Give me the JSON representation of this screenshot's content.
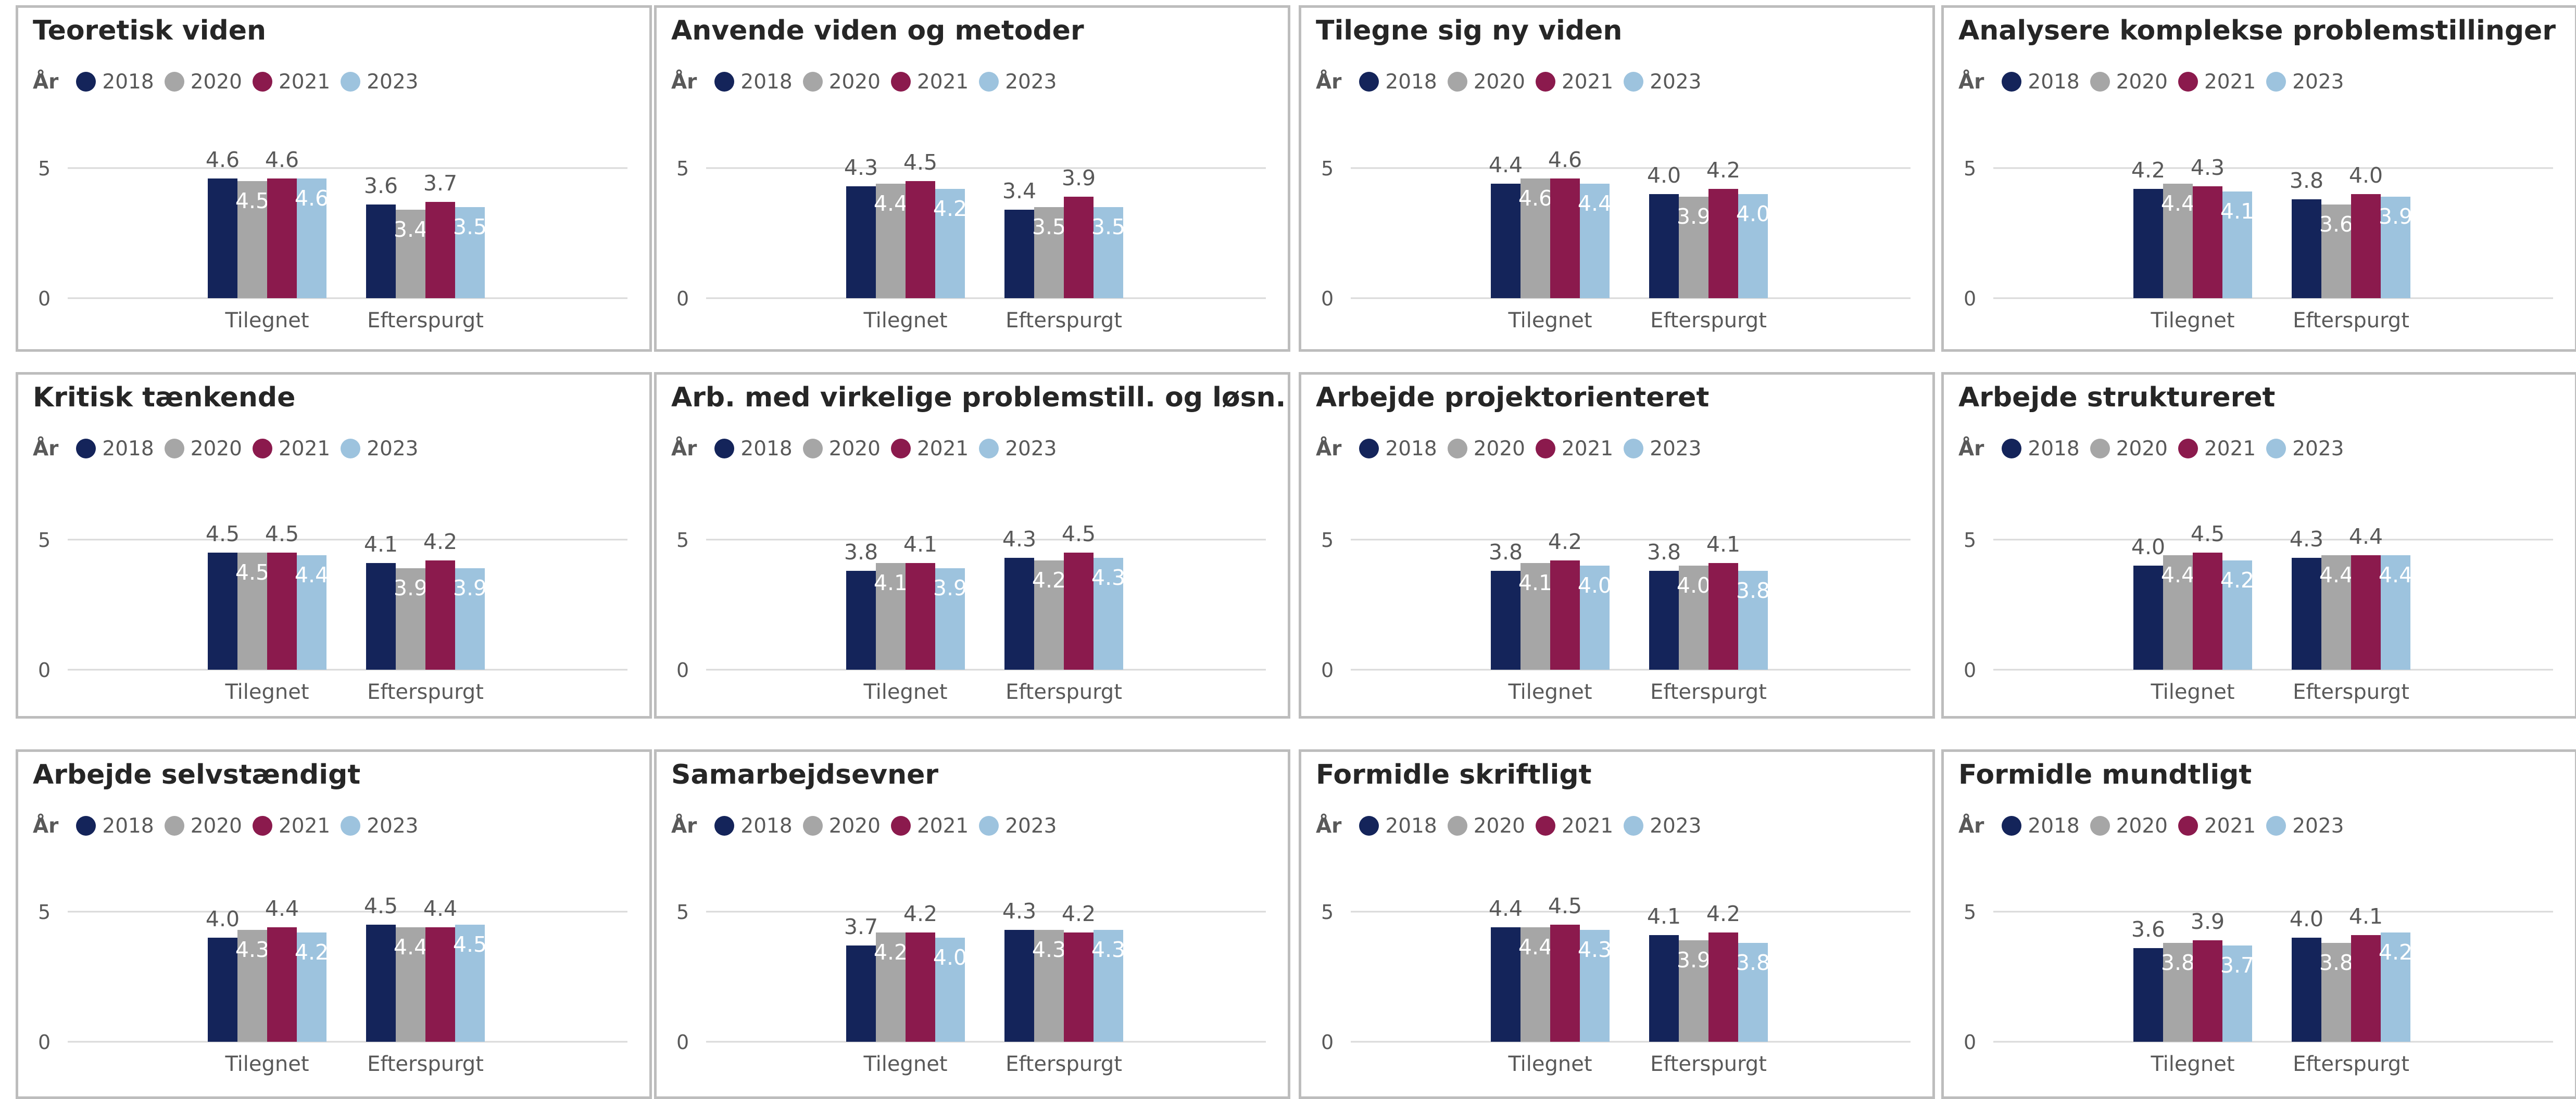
{
  "colors": {
    "2018": "#14245a",
    "2020": "#a6a6a6",
    "2021": "#8b1a4d",
    "2023": "#9dc3de"
  },
  "legend": {
    "title": "År",
    "items": [
      "2018",
      "2020",
      "2021",
      "2023"
    ]
  },
  "chart_data": [
    {
      "type": "bar",
      "title": "Teoretisk viden",
      "categories": [
        "Tilegnet",
        "Efterspurgt"
      ],
      "ylim": [
        0,
        5
      ],
      "yticks": [
        "0",
        "5"
      ],
      "grid": true,
      "legend": "top-left",
      "series": [
        {
          "name": "2018",
          "values": [
            4.6,
            3.6
          ]
        },
        {
          "name": "2020",
          "values": [
            4.5,
            3.4
          ]
        },
        {
          "name": "2021",
          "values": [
            4.6,
            3.7
          ]
        },
        {
          "name": "2023",
          "values": [
            4.6,
            3.5
          ]
        }
      ]
    },
    {
      "type": "bar",
      "title": "Anvende viden og metoder",
      "categories": [
        "Tilegnet",
        "Efterspurgt"
      ],
      "ylim": [
        0,
        5
      ],
      "yticks": [
        "0",
        "5"
      ],
      "grid": true,
      "legend": "top-left",
      "series": [
        {
          "name": "2018",
          "values": [
            4.3,
            3.4
          ]
        },
        {
          "name": "2020",
          "values": [
            4.4,
            3.5
          ]
        },
        {
          "name": "2021",
          "values": [
            4.5,
            3.9
          ]
        },
        {
          "name": "2023",
          "values": [
            4.2,
            3.5
          ]
        }
      ]
    },
    {
      "type": "bar",
      "title": "Tilegne sig ny viden",
      "categories": [
        "Tilegnet",
        "Efterspurgt"
      ],
      "ylim": [
        0,
        5
      ],
      "yticks": [
        "0",
        "5"
      ],
      "grid": true,
      "legend": "top-left",
      "series": [
        {
          "name": "2018",
          "values": [
            4.4,
            4.0
          ]
        },
        {
          "name": "2020",
          "values": [
            4.6,
            3.9
          ]
        },
        {
          "name": "2021",
          "values": [
            4.6,
            4.2
          ]
        },
        {
          "name": "2023",
          "values": [
            4.4,
            4.0
          ]
        }
      ]
    },
    {
      "type": "bar",
      "title": "Analysere komplekse problemstillinger",
      "categories": [
        "Tilegnet",
        "Efterspurgt"
      ],
      "ylim": [
        0,
        5
      ],
      "yticks": [
        "0",
        "5"
      ],
      "grid": true,
      "legend": "top-left",
      "series": [
        {
          "name": "2018",
          "values": [
            4.2,
            3.8
          ]
        },
        {
          "name": "2020",
          "values": [
            4.4,
            3.6
          ]
        },
        {
          "name": "2021",
          "values": [
            4.3,
            4.0
          ]
        },
        {
          "name": "2023",
          "values": [
            4.1,
            3.9
          ]
        }
      ]
    },
    {
      "type": "bar",
      "title": "Kritisk tænkende",
      "categories": [
        "Tilegnet",
        "Efterspurgt"
      ],
      "ylim": [
        0,
        5
      ],
      "yticks": [
        "0",
        "5"
      ],
      "grid": true,
      "legend": "top-left",
      "series": [
        {
          "name": "2018",
          "values": [
            4.5,
            4.1
          ]
        },
        {
          "name": "2020",
          "values": [
            4.5,
            3.9
          ]
        },
        {
          "name": "2021",
          "values": [
            4.5,
            4.2
          ]
        },
        {
          "name": "2023",
          "values": [
            4.4,
            3.9
          ]
        }
      ]
    },
    {
      "type": "bar",
      "title": "Arb. med  virkelige problemstill. og løsn.",
      "categories": [
        "Tilegnet",
        "Efterspurgt"
      ],
      "ylim": [
        0,
        5
      ],
      "yticks": [
        "0",
        "5"
      ],
      "grid": true,
      "legend": "top-left",
      "series": [
        {
          "name": "2018",
          "values": [
            3.8,
            4.3
          ]
        },
        {
          "name": "2020",
          "values": [
            4.1,
            4.2
          ]
        },
        {
          "name": "2021",
          "values": [
            4.1,
            4.5
          ]
        },
        {
          "name": "2023",
          "values": [
            3.9,
            4.3
          ]
        }
      ]
    },
    {
      "type": "bar",
      "title": "Arbejde projektorienteret",
      "categories": [
        "Tilegnet",
        "Efterspurgt"
      ],
      "ylim": [
        0,
        5
      ],
      "yticks": [
        "0",
        "5"
      ],
      "grid": true,
      "legend": "top-left",
      "series": [
        {
          "name": "2018",
          "values": [
            3.8,
            3.8
          ]
        },
        {
          "name": "2020",
          "values": [
            4.1,
            4.0
          ]
        },
        {
          "name": "2021",
          "values": [
            4.2,
            4.1
          ]
        },
        {
          "name": "2023",
          "values": [
            4.0,
            3.8
          ]
        }
      ]
    },
    {
      "type": "bar",
      "title": "Arbejde struktureret",
      "categories": [
        "Tilegnet",
        "Efterspurgt"
      ],
      "ylim": [
        0,
        5
      ],
      "yticks": [
        "0",
        "5"
      ],
      "grid": true,
      "legend": "top-left",
      "series": [
        {
          "name": "2018",
          "values": [
            4.0,
            4.3
          ]
        },
        {
          "name": "2020",
          "values": [
            4.4,
            4.4
          ]
        },
        {
          "name": "2021",
          "values": [
            4.5,
            4.4
          ]
        },
        {
          "name": "2023",
          "values": [
            4.2,
            4.4
          ]
        }
      ]
    },
    {
      "type": "bar",
      "title": "Arbejde selvstændigt",
      "categories": [
        "Tilegnet",
        "Efterspurgt"
      ],
      "ylim": [
        0,
        5
      ],
      "yticks": [
        "0",
        "5"
      ],
      "grid": true,
      "legend": "top-left",
      "series": [
        {
          "name": "2018",
          "values": [
            4.0,
            4.5
          ]
        },
        {
          "name": "2020",
          "values": [
            4.3,
            4.4
          ]
        },
        {
          "name": "2021",
          "values": [
            4.4,
            4.4
          ]
        },
        {
          "name": "2023",
          "values": [
            4.2,
            4.5
          ]
        }
      ]
    },
    {
      "type": "bar",
      "title": "Samarbejdsevner",
      "categories": [
        "Tilegnet",
        "Efterspurgt"
      ],
      "ylim": [
        0,
        5
      ],
      "yticks": [
        "0",
        "5"
      ],
      "grid": true,
      "legend": "top-left",
      "series": [
        {
          "name": "2018",
          "values": [
            3.7,
            4.3
          ]
        },
        {
          "name": "2020",
          "values": [
            4.2,
            4.3
          ]
        },
        {
          "name": "2021",
          "values": [
            4.2,
            4.2
          ]
        },
        {
          "name": "2023",
          "values": [
            4.0,
            4.3
          ]
        }
      ]
    },
    {
      "type": "bar",
      "title": "Formidle skriftligt",
      "categories": [
        "Tilegnet",
        "Efterspurgt"
      ],
      "ylim": [
        0,
        5
      ],
      "yticks": [
        "0",
        "5"
      ],
      "grid": true,
      "legend": "top-left",
      "series": [
        {
          "name": "2018",
          "values": [
            4.4,
            4.1
          ]
        },
        {
          "name": "2020",
          "values": [
            4.4,
            3.9
          ]
        },
        {
          "name": "2021",
          "values": [
            4.5,
            4.2
          ]
        },
        {
          "name": "2023",
          "values": [
            4.3,
            3.8
          ]
        }
      ]
    },
    {
      "type": "bar",
      "title": "Formidle mundtligt",
      "categories": [
        "Tilegnet",
        "Efterspurgt"
      ],
      "ylim": [
        0,
        5
      ],
      "yticks": [
        "0",
        "5"
      ],
      "grid": true,
      "legend": "top-left",
      "series": [
        {
          "name": "2018",
          "values": [
            3.6,
            4.0
          ]
        },
        {
          "name": "2020",
          "values": [
            3.8,
            3.8
          ]
        },
        {
          "name": "2021",
          "values": [
            3.9,
            4.1
          ]
        },
        {
          "name": "2023",
          "values": [
            3.7,
            4.2
          ]
        }
      ]
    }
  ]
}
